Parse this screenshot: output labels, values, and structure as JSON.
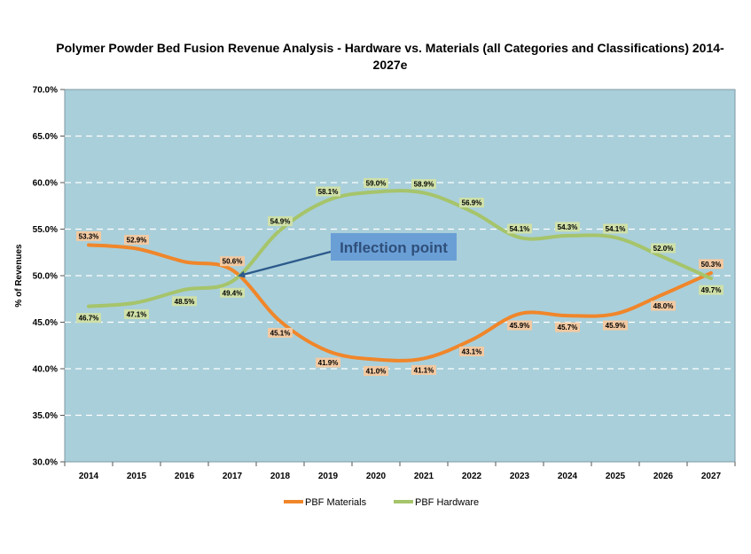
{
  "chart_data": {
    "type": "line",
    "title": "Polymer Powder Bed Fusion Revenue Analysis - Hardware vs. Materials (all Categories and Classifications) 2014-2027e",
    "xlabel": "",
    "ylabel": "% of Revenues",
    "ylim": [
      30,
      70
    ],
    "yticks": [
      "30.0%",
      "35.0%",
      "40.0%",
      "45.0%",
      "50.0%",
      "55.0%",
      "60.0%",
      "65.0%",
      "70.0%"
    ],
    "categories": [
      "2014",
      "2015",
      "2016",
      "2017",
      "2018",
      "2019",
      "2020",
      "2021",
      "2022",
      "2023",
      "2024",
      "2025",
      "2026",
      "2027"
    ],
    "series": [
      {
        "name": "PBF Materials",
        "color": "#f0862a",
        "values": [
          53.3,
          52.9,
          51.5,
          50.6,
          45.1,
          41.9,
          41.0,
          41.1,
          43.1,
          45.9,
          45.7,
          45.9,
          48.0,
          50.3
        ],
        "labels": [
          "53.3%",
          "52.9%",
          "",
          "50.6%",
          "45.1%",
          "41.9%",
          "41.0%",
          "41.1%",
          "43.1%",
          "45.9%",
          "45.7%",
          "45.9%",
          "48.0%",
          "50.3%"
        ]
      },
      {
        "name": "PBF Hardware",
        "color": "#a6c46a",
        "values": [
          46.7,
          47.1,
          48.5,
          49.4,
          54.9,
          58.1,
          59.0,
          58.9,
          56.9,
          54.1,
          54.3,
          54.1,
          52.0,
          49.7
        ],
        "labels": [
          "46.7%",
          "47.1%",
          "48.5%",
          "49.4%",
          "54.9%",
          "58.1%",
          "59.0%",
          "58.9%",
          "56.9%",
          "54.1%",
          "54.3%",
          "54.1%",
          "52.0%",
          "49.7%"
        ]
      }
    ],
    "annotation": {
      "text": "Inflection point"
    },
    "grid": true,
    "legend": "bottom",
    "plot_background": "#a9cfda",
    "label_background": "#f2c9a2"
  }
}
